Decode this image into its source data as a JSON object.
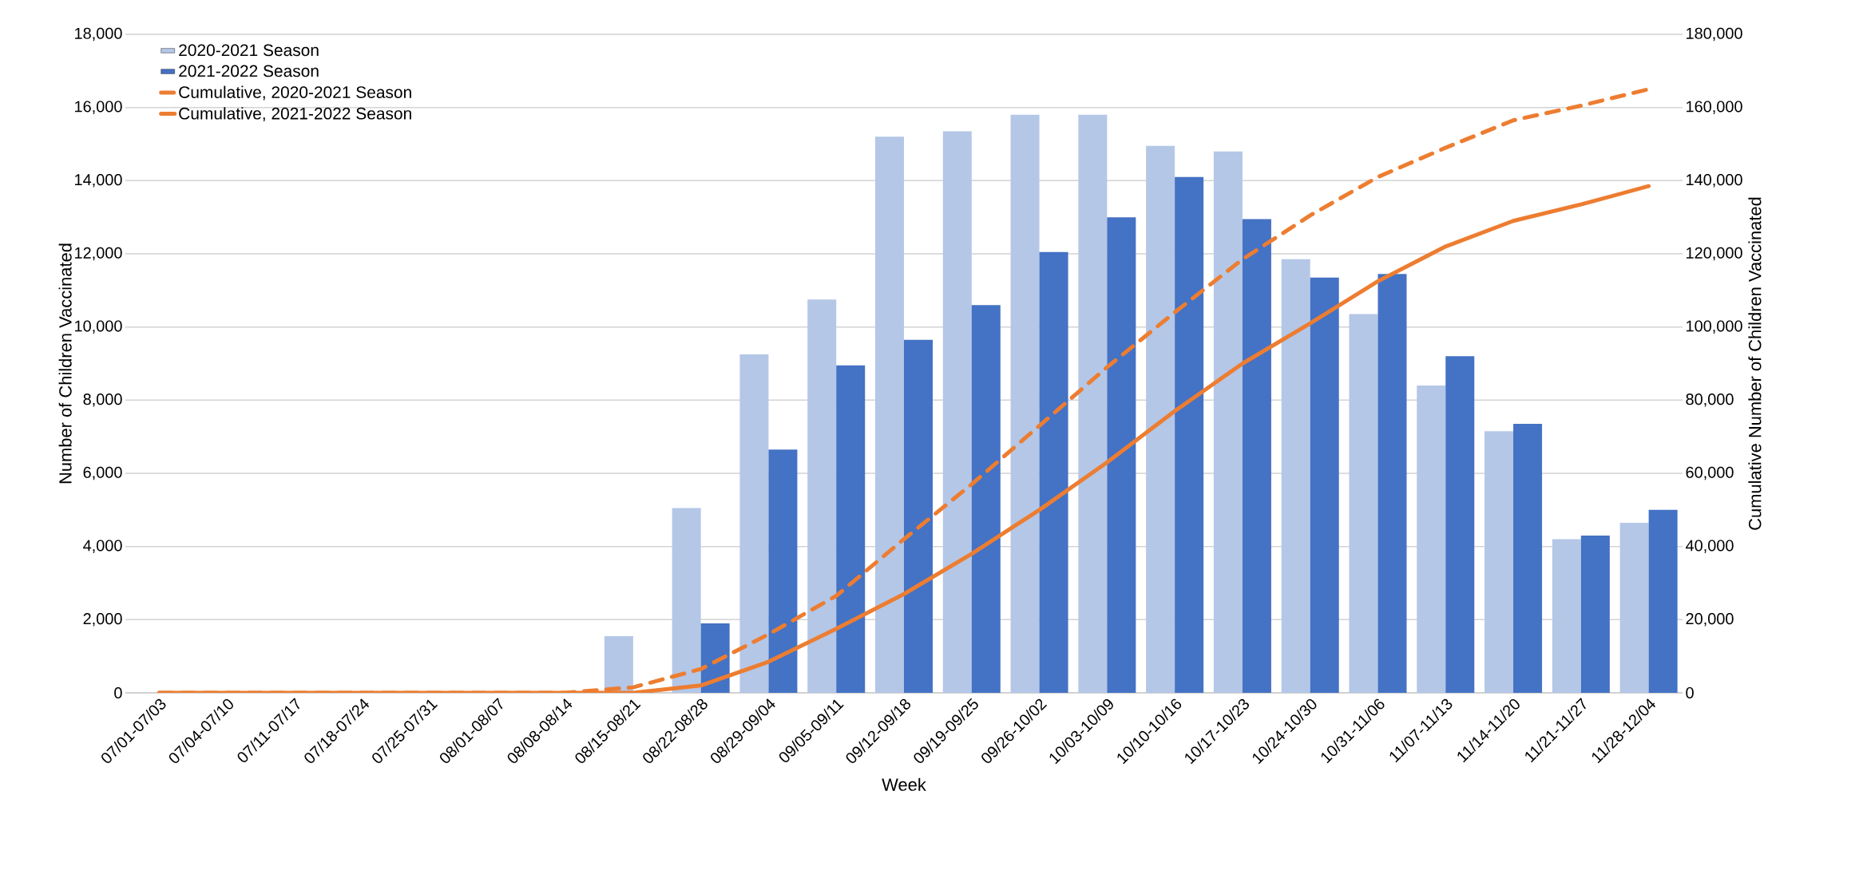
{
  "chart_data": {
    "type": "bar",
    "xlabel": "Week",
    "ylabel": "Number of Children Vaccinated",
    "y2label": "Cumulative Number of Children Vaccinated",
    "categories": [
      "07/01-07/03",
      "07/04-07/10",
      "07/11-07/17",
      "07/18-07/24",
      "07/25-07/31",
      "08/01-08/07",
      "08/08-08/14",
      "08/15-08/21",
      "08/22-08/28",
      "08/29-09/04",
      "09/05-09/11",
      "09/12-09/18",
      "09/19-09/25",
      "09/26-10/02",
      "10/03-10/09",
      "10/10-10/16",
      "10/17-10/23",
      "10/24-10/30",
      "10/31-11/06",
      "11/07-11/13",
      "11/14-11/20",
      "11/21-11/27",
      "11/28-12/04"
    ],
    "series": [
      {
        "name": "2020-2021 Season",
        "color": "#b4c7e7",
        "values": [
          0,
          0,
          0,
          0,
          0,
          0,
          null,
          1550,
          5050,
          9250,
          10750,
          15200,
          15350,
          15800,
          15800,
          14950,
          14800,
          11850,
          10350,
          8400,
          7150,
          4200,
          4650
        ]
      },
      {
        "name": "2021-2022 Season",
        "color": "#4472c4",
        "values": [
          0,
          0,
          0,
          0,
          0,
          0,
          0,
          null,
          1900,
          6650,
          8950,
          9650,
          10600,
          12050,
          13000,
          14100,
          12950,
          11350,
          11450,
          9200,
          7350,
          4300,
          5000
        ]
      },
      {
        "name": "Cumulative, 2020-2021 Season",
        "type": "line",
        "axis": "y2",
        "line_style": "dashed",
        "color": "#ed7d31",
        "values": [
          0,
          0,
          0,
          0,
          0,
          0,
          0,
          1500,
          6500,
          16000,
          26500,
          42000,
          57000,
          73000,
          89000,
          104000,
          118500,
          130500,
          141000,
          149000,
          156500,
          160500,
          165000
        ]
      },
      {
        "name": "Cumulative, 2021-2022 Season",
        "type": "line",
        "axis": "y2",
        "line_style": "solid",
        "color": "#ed7d31",
        "values": [
          0,
          0,
          0,
          0,
          0,
          0,
          0,
          0,
          2000,
          8500,
          17500,
          27000,
          38000,
          50000,
          63000,
          77000,
          90000,
          101000,
          112500,
          122000,
          129000,
          133500,
          138500
        ]
      }
    ],
    "ylim": [
      0,
      18000
    ],
    "yticks": [
      0,
      {
        "value": 2000,
        "label": "2,000"
      },
      {
        "value": 4000,
        "label": "4,000"
      },
      {
        "value": 6000,
        "label": "6,000"
      },
      {
        "value": 8000,
        "label": "8,000"
      },
      {
        "value": 10000,
        "label": "10,000"
      },
      {
        "value": 12000,
        "label": "12,000"
      },
      {
        "value": 14000,
        "label": "14,000"
      },
      {
        "value": 16000,
        "label": "16,000"
      },
      {
        "value": 18000,
        "label": "18,000"
      }
    ],
    "y2lim": [
      0,
      180000
    ],
    "y2ticks": [
      0,
      {
        "value": 20000,
        "label": "20,000"
      },
      {
        "value": 40000,
        "label": "40,000"
      },
      {
        "value": 60000,
        "label": "60,000"
      },
      {
        "value": 80000,
        "label": "80,000"
      },
      {
        "value": 100000,
        "label": "100,000"
      },
      {
        "value": 120000,
        "label": "120,000"
      },
      {
        "value": 140000,
        "label": "140,000"
      },
      {
        "value": 160000,
        "label": "160,000"
      },
      {
        "value": 180000,
        "label": "180,000"
      }
    ],
    "grid": "y",
    "legend": "top left"
  }
}
